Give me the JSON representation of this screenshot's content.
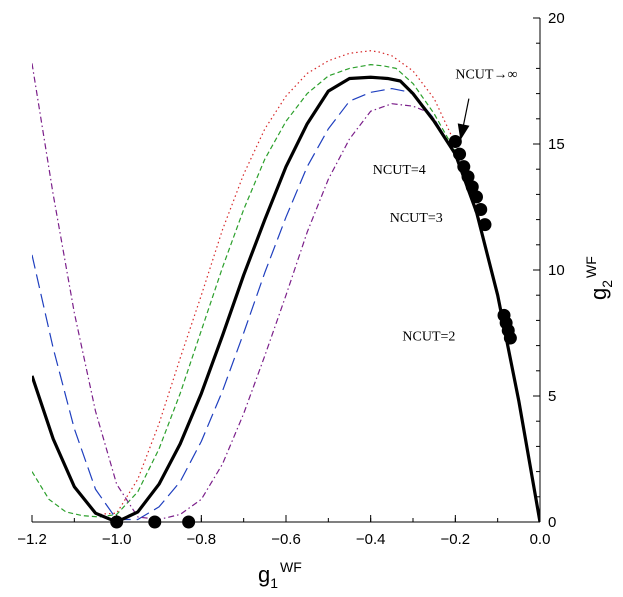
{
  "chart_data": {
    "type": "line",
    "xlabel": "g",
    "xlabel_sub": "1",
    "xlabel_sup": "WF",
    "ylabel": "g",
    "ylabel_sub": "2",
    "ylabel_sup": "WF",
    "xlim": [
      -1.2,
      0.0
    ],
    "ylim": [
      0,
      20
    ],
    "xticks": [
      -1.2,
      -1.0,
      -0.8,
      -0.6,
      -0.4,
      -0.2,
      0.0
    ],
    "xtick_labels": [
      "-1.2",
      "-1.0",
      "-0.8",
      "-0.6",
      "-0.4",
      "-0.2",
      "0.0"
    ],
    "yticks": [
      0,
      5,
      10,
      15,
      20
    ],
    "ytick_labels": [
      "0",
      "5",
      "10",
      "15",
      "20"
    ],
    "grid": false,
    "series": [
      {
        "color": "#000000",
        "style": "solid",
        "width": 3.2,
        "x": [
          -1.2,
          -1.15,
          -1.1,
          -1.05,
          -1.0,
          -0.95,
          -0.9,
          -0.85,
          -0.8,
          -0.75,
          -0.7,
          -0.65,
          -0.6,
          -0.55,
          -0.5,
          -0.45,
          -0.4,
          -0.36,
          -0.33,
          -0.3,
          -0.25,
          -0.2,
          -0.15,
          -0.1,
          -0.05,
          0.0
        ],
        "y": [
          5.8,
          3.3,
          1.4,
          0.35,
          0.0,
          0.4,
          1.5,
          3.1,
          5.1,
          7.4,
          9.8,
          12.0,
          14.1,
          15.8,
          17.1,
          17.6,
          17.65,
          17.6,
          17.5,
          17.0,
          15.9,
          14.6,
          12.3,
          9.0,
          4.8,
          0.0
        ]
      },
      {
        "color": "#d62728",
        "style": "dotted",
        "width": 1.2,
        "x": [
          -1.05,
          -1.0,
          -0.95,
          -0.9,
          -0.85,
          -0.8,
          -0.75,
          -0.7,
          -0.65,
          -0.6,
          -0.55,
          -0.5,
          -0.45,
          -0.4,
          -0.38,
          -0.35,
          -0.3,
          -0.25,
          -0.2,
          -0.15,
          -0.1,
          -0.05,
          0.0
        ],
        "y": [
          0.3,
          0.35,
          1.7,
          3.9,
          6.5,
          9.0,
          11.6,
          13.8,
          15.6,
          16.9,
          17.8,
          18.3,
          18.6,
          18.7,
          18.65,
          18.5,
          17.9,
          16.8,
          15.0,
          12.5,
          9.0,
          4.8,
          0.0
        ]
      },
      {
        "color": "#2ca02c",
        "style": "dashed",
        "width": 1.2,
        "x": [
          -1.2,
          -1.16,
          -1.12,
          -1.08,
          -1.04,
          -1.0,
          -0.95,
          -0.9,
          -0.85,
          -0.8,
          -0.75,
          -0.7,
          -0.65,
          -0.6,
          -0.55,
          -0.5,
          -0.45,
          -0.4,
          -0.37,
          -0.34,
          -0.3,
          -0.25,
          -0.2,
          -0.15,
          -0.1,
          -0.05,
          0.0
        ],
        "y": [
          2.0,
          0.9,
          0.4,
          0.25,
          0.2,
          0.3,
          1.2,
          2.9,
          5.1,
          7.6,
          10.1,
          12.4,
          14.4,
          15.9,
          17.0,
          17.7,
          18.0,
          18.15,
          18.1,
          18.0,
          17.4,
          16.2,
          14.7,
          12.3,
          9.0,
          4.8,
          0.0
        ]
      },
      {
        "color": "#1f3fbf",
        "style": "longdash",
        "width": 1.2,
        "x": [
          -1.2,
          -1.15,
          -1.1,
          -1.05,
          -1.0,
          -0.95,
          -0.9,
          -0.85,
          -0.8,
          -0.75,
          -0.7,
          -0.65,
          -0.6,
          -0.55,
          -0.5,
          -0.45,
          -0.4,
          -0.35,
          -0.32,
          -0.3,
          -0.25,
          -0.2,
          -0.15,
          -0.1,
          -0.05,
          0.0
        ],
        "y": [
          10.6,
          6.9,
          3.7,
          1.3,
          0.1,
          0.1,
          0.6,
          1.6,
          3.2,
          5.2,
          7.5,
          9.9,
          12.1,
          14.1,
          15.6,
          16.7,
          17.05,
          17.2,
          17.1,
          17.0,
          16.0,
          14.6,
          12.3,
          9.0,
          4.8,
          0.0
        ]
      },
      {
        "color": "#7b1f8a",
        "style": "dashdot",
        "width": 1.2,
        "x": [
          -1.2,
          -1.15,
          -1.1,
          -1.05,
          -1.0,
          -0.95,
          -0.9,
          -0.85,
          -0.8,
          -0.75,
          -0.7,
          -0.65,
          -0.6,
          -0.55,
          -0.5,
          -0.45,
          -0.4,
          -0.35,
          -0.3,
          -0.27,
          -0.25,
          -0.2,
          -0.15,
          -0.1,
          -0.05,
          0.0
        ],
        "y": [
          18.2,
          13.0,
          8.3,
          4.4,
          1.5,
          0.2,
          0.1,
          0.3,
          0.9,
          2.3,
          4.3,
          6.6,
          9.0,
          11.5,
          13.6,
          15.2,
          16.3,
          16.6,
          16.5,
          16.3,
          16.0,
          14.6,
          12.3,
          9.0,
          4.8,
          0.0
        ]
      }
    ],
    "points": {
      "x": [
        -1.0,
        -0.91,
        -0.83,
        -0.2,
        -0.19,
        -0.18,
        -0.17,
        -0.16,
        -0.15,
        -0.14,
        -0.13,
        -0.085,
        -0.08,
        -0.075,
        -0.07
      ],
      "y": [
        0.0,
        0.0,
        0.0,
        15.1,
        14.6,
        14.1,
        13.7,
        13.3,
        12.9,
        12.4,
        11.8,
        8.2,
        7.9,
        7.6,
        7.3
      ]
    },
    "annotations": [
      {
        "text": "NCUT→∞",
        "x": -0.2,
        "y": 17.6
      },
      {
        "text": "NCUT=4",
        "x": -0.395,
        "y": 13.8
      },
      {
        "text": "NCUT=3",
        "x": -0.355,
        "y": 11.9
      },
      {
        "text": "NCUT=2",
        "x": -0.325,
        "y": 7.2
      }
    ],
    "arrow": {
      "from": [
        -0.168,
        16.8
      ],
      "to": [
        -0.188,
        15.15
      ]
    }
  }
}
